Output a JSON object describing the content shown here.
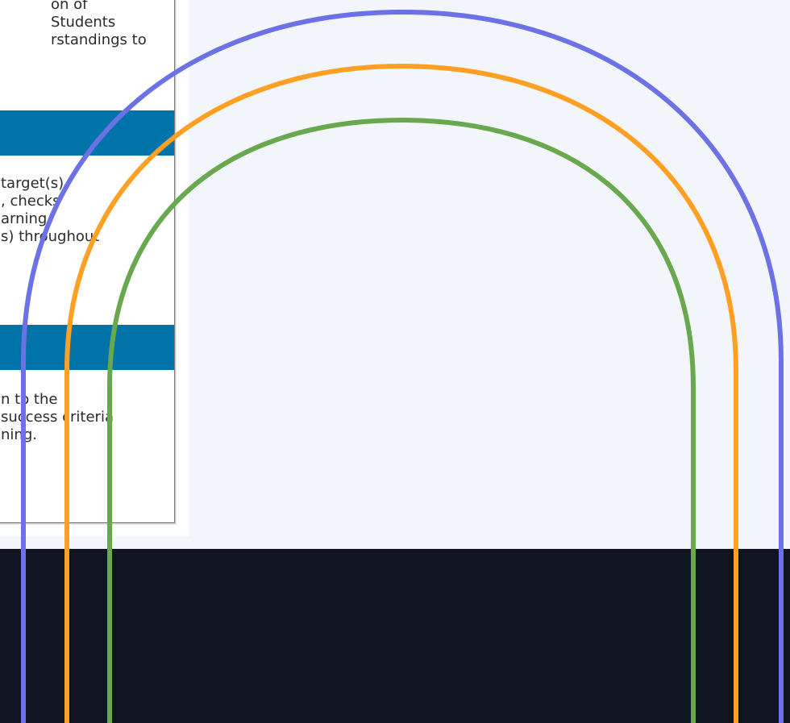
{
  "document_fragment": {
    "block1_lines": [
      "on of",
      "Students",
      "rstandings to"
    ],
    "block2_lines": [
      "target(s)",
      ", checks",
      "arning",
      "s) throughout"
    ],
    "block3_lines": [
      "n to the",
      "success criteria",
      "ning."
    ]
  },
  "decoration": {
    "arch_colors": [
      "#6c72e6",
      "#ff9f24",
      "#6aa84f"
    ],
    "footer_color": "#0e1420",
    "band_color": "#0074a8",
    "background_color": "#f2f5fa"
  }
}
